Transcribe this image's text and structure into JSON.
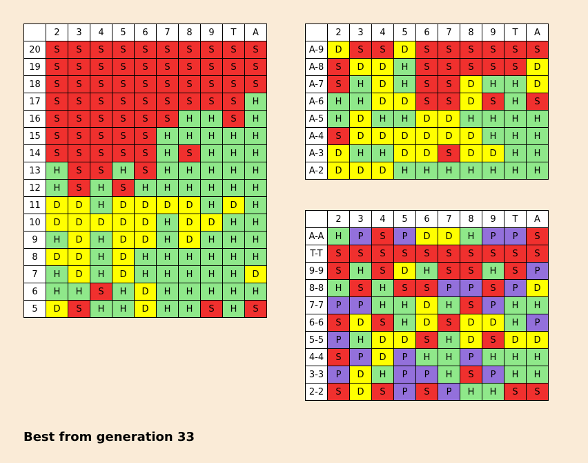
{
  "title": "Best from generation 33",
  "colors": {
    "S": "#f0302e",
    "H": "#8fe88a",
    "D": "#ffff00",
    "P": "#9370db",
    "background": "#faebd7"
  },
  "dealer_columns": [
    "2",
    "3",
    "4",
    "5",
    "6",
    "7",
    "8",
    "9",
    "T",
    "A"
  ],
  "hard_totals": {
    "rows": [
      {
        "label": "20",
        "cells": [
          "S",
          "S",
          "S",
          "S",
          "S",
          "S",
          "S",
          "S",
          "S",
          "S"
        ]
      },
      {
        "label": "19",
        "cells": [
          "S",
          "S",
          "S",
          "S",
          "S",
          "S",
          "S",
          "S",
          "S",
          "S"
        ]
      },
      {
        "label": "18",
        "cells": [
          "S",
          "S",
          "S",
          "S",
          "S",
          "S",
          "S",
          "S",
          "S",
          "S"
        ]
      },
      {
        "label": "17",
        "cells": [
          "S",
          "S",
          "S",
          "S",
          "S",
          "S",
          "S",
          "S",
          "S",
          "H"
        ]
      },
      {
        "label": "16",
        "cells": [
          "S",
          "S",
          "S",
          "S",
          "S",
          "S",
          "H",
          "H",
          "S",
          "H"
        ]
      },
      {
        "label": "15",
        "cells": [
          "S",
          "S",
          "S",
          "S",
          "S",
          "H",
          "H",
          "H",
          "H",
          "H"
        ]
      },
      {
        "label": "14",
        "cells": [
          "S",
          "S",
          "S",
          "S",
          "S",
          "H",
          "S",
          "H",
          "H",
          "H"
        ]
      },
      {
        "label": "13",
        "cells": [
          "H",
          "S",
          "S",
          "H",
          "S",
          "H",
          "H",
          "H",
          "H",
          "H"
        ]
      },
      {
        "label": "12",
        "cells": [
          "H",
          "S",
          "H",
          "S",
          "H",
          "H",
          "H",
          "H",
          "H",
          "H"
        ]
      },
      {
        "label": "11",
        "cells": [
          "D",
          "D",
          "H",
          "D",
          "D",
          "D",
          "D",
          "H",
          "D",
          "H"
        ]
      },
      {
        "label": "10",
        "cells": [
          "D",
          "D",
          "D",
          "D",
          "D",
          "H",
          "D",
          "D",
          "H",
          "H"
        ]
      },
      {
        "label": "9",
        "cells": [
          "H",
          "D",
          "H",
          "D",
          "D",
          "H",
          "D",
          "H",
          "H",
          "H"
        ]
      },
      {
        "label": "8",
        "cells": [
          "D",
          "D",
          "H",
          "D",
          "H",
          "H",
          "H",
          "H",
          "H",
          "H"
        ]
      },
      {
        "label": "7",
        "cells": [
          "H",
          "D",
          "H",
          "D",
          "H",
          "H",
          "H",
          "H",
          "H",
          "D"
        ]
      },
      {
        "label": "6",
        "cells": [
          "H",
          "H",
          "S",
          "H",
          "D",
          "H",
          "H",
          "H",
          "H",
          "H"
        ]
      },
      {
        "label": "5",
        "cells": [
          "D",
          "S",
          "H",
          "H",
          "D",
          "H",
          "H",
          "S",
          "H",
          "S"
        ]
      }
    ]
  },
  "soft_totals": {
    "rows": [
      {
        "label": "A-9",
        "cells": [
          "D",
          "S",
          "S",
          "D",
          "S",
          "S",
          "S",
          "S",
          "S",
          "S"
        ]
      },
      {
        "label": "A-8",
        "cells": [
          "S",
          "D",
          "D",
          "H",
          "S",
          "S",
          "S",
          "S",
          "S",
          "D"
        ]
      },
      {
        "label": "A-7",
        "cells": [
          "S",
          "H",
          "D",
          "H",
          "S",
          "S",
          "D",
          "H",
          "H",
          "D"
        ]
      },
      {
        "label": "A-6",
        "cells": [
          "H",
          "H",
          "D",
          "D",
          "S",
          "S",
          "D",
          "S",
          "H",
          "S"
        ]
      },
      {
        "label": "A-5",
        "cells": [
          "H",
          "D",
          "H",
          "H",
          "D",
          "D",
          "H",
          "H",
          "H",
          "H"
        ]
      },
      {
        "label": "A-4",
        "cells": [
          "S",
          "D",
          "D",
          "D",
          "D",
          "D",
          "D",
          "H",
          "H",
          "H"
        ]
      },
      {
        "label": "A-3",
        "cells": [
          "D",
          "H",
          "H",
          "D",
          "D",
          "S",
          "D",
          "D",
          "H",
          "H"
        ]
      },
      {
        "label": "A-2",
        "cells": [
          "D",
          "D",
          "D",
          "H",
          "H",
          "H",
          "H",
          "H",
          "H",
          "H"
        ]
      }
    ]
  },
  "pairs": {
    "rows": [
      {
        "label": "A-A",
        "cells": [
          "H",
          "P",
          "S",
          "P",
          "D",
          "D",
          "H",
          "P",
          "P",
          "S"
        ]
      },
      {
        "label": "T-T",
        "cells": [
          "S",
          "S",
          "S",
          "S",
          "S",
          "S",
          "S",
          "S",
          "S",
          "S"
        ]
      },
      {
        "label": "9-9",
        "cells": [
          "S",
          "H",
          "S",
          "D",
          "H",
          "S",
          "S",
          "H",
          "S",
          "P"
        ]
      },
      {
        "label": "8-8",
        "cells": [
          "H",
          "S",
          "H",
          "S",
          "S",
          "P",
          "P",
          "S",
          "P",
          "D"
        ]
      },
      {
        "label": "7-7",
        "cells": [
          "P",
          "P",
          "H",
          "H",
          "D",
          "H",
          "S",
          "P",
          "H",
          "H"
        ]
      },
      {
        "label": "6-6",
        "cells": [
          "S",
          "D",
          "S",
          "H",
          "D",
          "S",
          "D",
          "D",
          "H",
          "P"
        ]
      },
      {
        "label": "5-5",
        "cells": [
          "P",
          "H",
          "D",
          "D",
          "S",
          "H",
          "D",
          "S",
          "D",
          "D"
        ]
      },
      {
        "label": "4-4",
        "cells": [
          "S",
          "P",
          "D",
          "P",
          "H",
          "H",
          "P",
          "H",
          "H",
          "H"
        ]
      },
      {
        "label": "3-3",
        "cells": [
          "P",
          "D",
          "H",
          "P",
          "P",
          "H",
          "S",
          "P",
          "H",
          "H"
        ]
      },
      {
        "label": "2-2",
        "cells": [
          "S",
          "D",
          "S",
          "P",
          "S",
          "P",
          "H",
          "H",
          "S",
          "S"
        ]
      }
    ]
  }
}
